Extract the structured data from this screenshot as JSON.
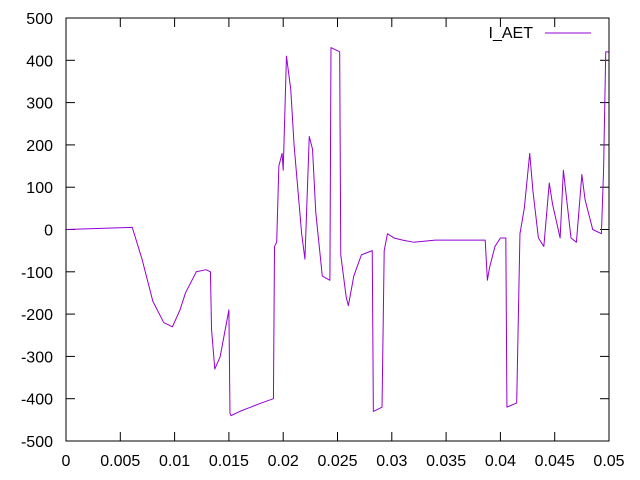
{
  "chart_data": {
    "type": "line",
    "title": "",
    "xlabel": "",
    "ylabel": "",
    "xlim": [
      0,
      0.05
    ],
    "ylim": [
      -500,
      500
    ],
    "x_ticks": [
      0,
      0.005,
      0.01,
      0.015,
      0.02,
      0.025,
      0.03,
      0.035,
      0.04,
      0.045,
      0.05
    ],
    "x_tick_labels": [
      "0",
      "0.005",
      "0.01",
      "0.015",
      "0.02",
      "0.025",
      "0.03",
      "0.035",
      "0.04",
      "0.045",
      "0.05"
    ],
    "y_ticks": [
      -500,
      -400,
      -300,
      -200,
      -100,
      0,
      100,
      200,
      300,
      400,
      500
    ],
    "y_tick_labels": [
      "-500",
      "-400",
      "-300",
      "-200",
      "-100",
      "0",
      "100",
      "200",
      "300",
      "400",
      "500"
    ],
    "grid": false,
    "legend": {
      "position": "top-right"
    },
    "series": [
      {
        "name": "I_AET",
        "color": "#9400d3",
        "x": [
          0,
          0.0061,
          0.007,
          0.008,
          0.009,
          0.0098,
          0.0105,
          0.011,
          0.012,
          0.0129,
          0.0133,
          0.0134,
          0.0137,
          0.0142,
          0.015,
          0.0151,
          0.0152,
          0.016,
          0.017,
          0.018,
          0.0191,
          0.0192,
          0.0194,
          0.0196,
          0.0199,
          0.02,
          0.0203,
          0.0207,
          0.021,
          0.0217,
          0.022,
          0.0224,
          0.0227,
          0.023,
          0.0236,
          0.0243,
          0.0244,
          0.0252,
          0.0253,
          0.0258,
          0.026,
          0.0265,
          0.0272,
          0.0282,
          0.0283,
          0.0291,
          0.0293,
          0.0296,
          0.0302,
          0.031,
          0.032,
          0.034,
          0.0386,
          0.0388,
          0.039,
          0.0395,
          0.04,
          0.0405,
          0.0406,
          0.0415,
          0.0418,
          0.0422,
          0.0427,
          0.043,
          0.0435,
          0.044,
          0.0445,
          0.0448,
          0.0455,
          0.0458,
          0.0465,
          0.047,
          0.0475,
          0.0478,
          0.0485,
          0.0493,
          0.0495,
          0.0497,
          0.05
        ],
        "values": [
          0,
          5,
          -70,
          -170,
          -220,
          -230,
          -190,
          -150,
          -100,
          -95,
          -100,
          -235,
          -330,
          -300,
          -190,
          -435,
          -440,
          -430,
          -420,
          -410,
          -400,
          -40,
          -30,
          150,
          180,
          140,
          410,
          330,
          200,
          -10,
          -70,
          220,
          190,
          40,
          -110,
          -120,
          430,
          420,
          -60,
          -160,
          -180,
          -110,
          -60,
          -50,
          -430,
          -420,
          -50,
          -10,
          -20,
          -25,
          -30,
          -25,
          -25,
          -120,
          -90,
          -40,
          -20,
          -20,
          -420,
          -410,
          -10,
          50,
          180,
          90,
          -20,
          -40,
          110,
          60,
          -20,
          140,
          -20,
          -30,
          130,
          70,
          0,
          -10,
          140,
          420,
          420
        ]
      }
    ]
  }
}
